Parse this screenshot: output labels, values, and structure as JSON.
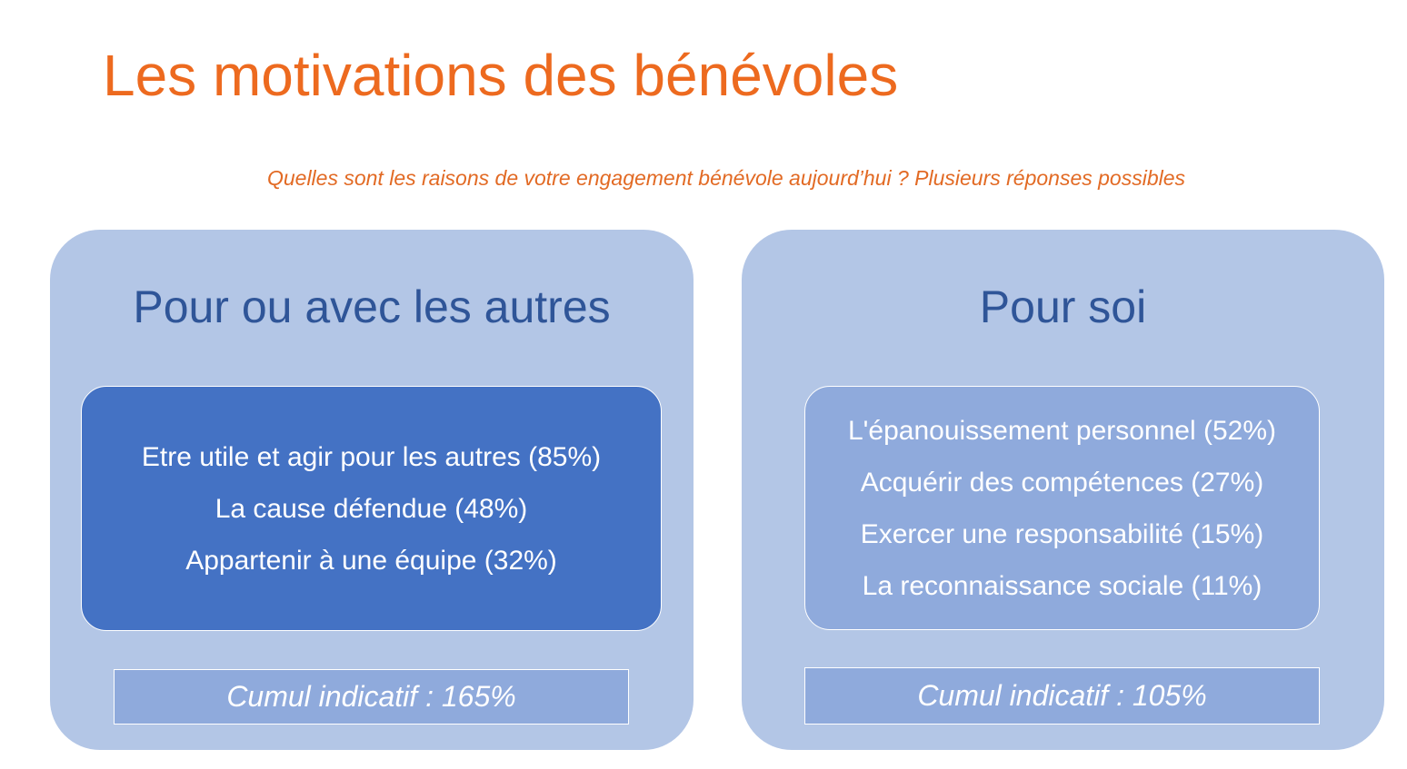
{
  "title": "Les motivations des bénévoles",
  "subtitle": "Quelles sont les raisons de votre engagement bénévole aujourd’hui ? Plusieurs réponses possibles",
  "colors": {
    "title": "#ED6A1F",
    "panel_bg": "#B3C6E6",
    "heading": "#2F5598",
    "inner_dark": "#4472C4",
    "inner_light": "#8FAADC"
  },
  "panels": [
    {
      "heading": "Pour ou avec les autres",
      "items": [
        "Etre utile et agir pour les autres (85%)",
        "La cause défendue (48%)",
        "Appartenir à une équipe (32%)"
      ],
      "cumul": "Cumul indicatif : 165%"
    },
    {
      "heading": "Pour soi",
      "items": [
        "L'épanouissement personnel (52%)",
        "Acquérir des compétences (27%)",
        "Exercer une responsabilité (15%)",
        "La reconnaissance sociale (11%)"
      ],
      "cumul": "Cumul indicatif : 105%"
    }
  ]
}
